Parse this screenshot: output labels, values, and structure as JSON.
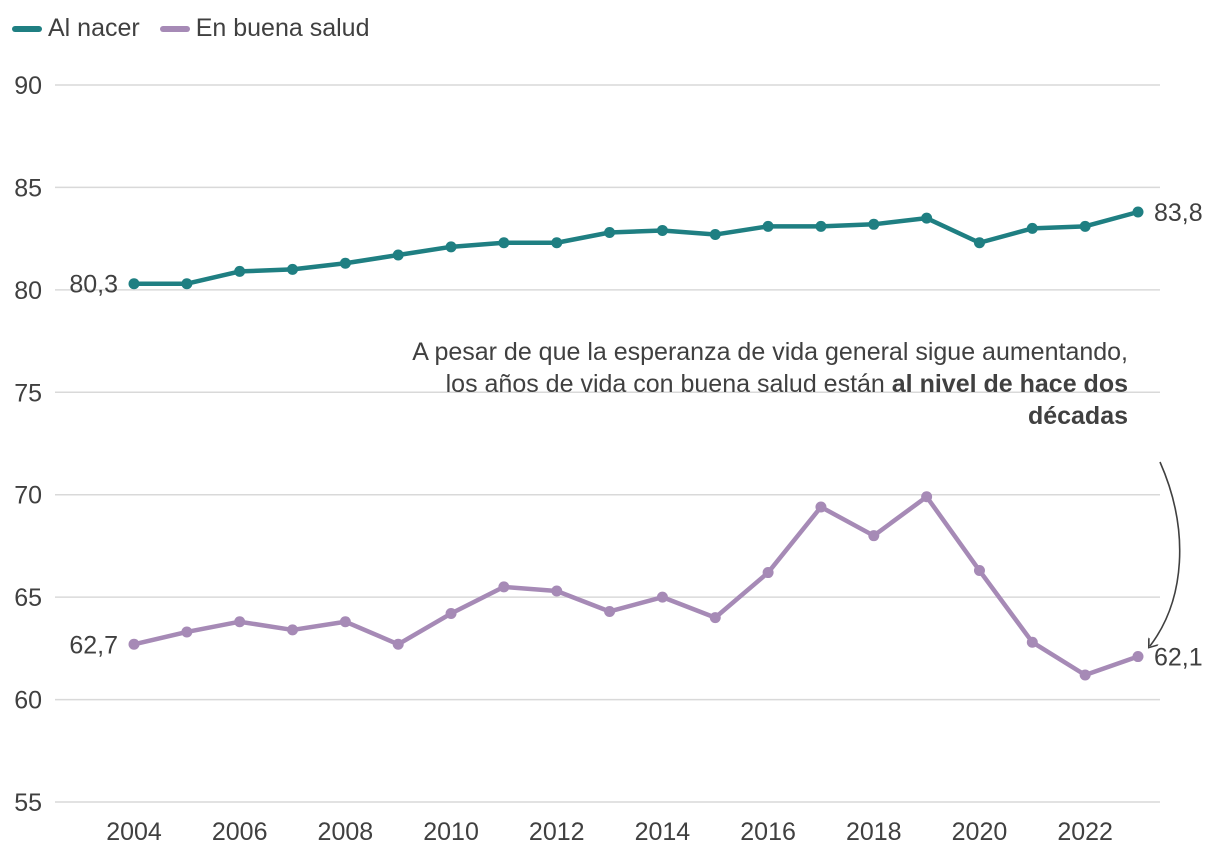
{
  "chart_data": {
    "type": "line",
    "x": [
      2004,
      2005,
      2006,
      2007,
      2008,
      2009,
      2010,
      2011,
      2012,
      2013,
      2014,
      2015,
      2016,
      2017,
      2018,
      2019,
      2020,
      2021,
      2022,
      2023
    ],
    "series": [
      {
        "name": "Al nacer",
        "color": "#1f7f82",
        "values": [
          80.3,
          80.3,
          80.9,
          81.0,
          81.3,
          81.7,
          82.1,
          82.3,
          82.3,
          82.8,
          82.9,
          82.7,
          83.1,
          83.1,
          83.2,
          83.5,
          82.3,
          83.0,
          83.1,
          83.8
        ],
        "start_label": "80,3",
        "end_label": "83,8"
      },
      {
        "name": "En buena salud",
        "color": "#a68ab6",
        "values": [
          62.7,
          63.3,
          63.8,
          63.4,
          63.8,
          62.7,
          64.2,
          65.5,
          65.3,
          64.3,
          65.0,
          64.0,
          66.2,
          69.4,
          68.0,
          69.9,
          66.3,
          62.8,
          61.2,
          62.1
        ],
        "start_label": "62,7",
        "end_label": "62,1"
      }
    ],
    "ylim": [
      55,
      90
    ],
    "yticks": [
      55,
      60,
      65,
      70,
      75,
      80,
      85,
      90
    ],
    "xticks": [
      2004,
      2006,
      2008,
      2010,
      2012,
      2014,
      2016,
      2018,
      2020,
      2022
    ],
    "grid": true,
    "legend_position": "top-left",
    "annotation": {
      "text_normal": "A pesar de que la esperanza de vida general sigue aumentando, los años de vida con buena salud están ",
      "text_bold": "al nivel de hace dos décadas"
    },
    "grid_color": "#d9d9d9",
    "text_color": "#404040"
  }
}
